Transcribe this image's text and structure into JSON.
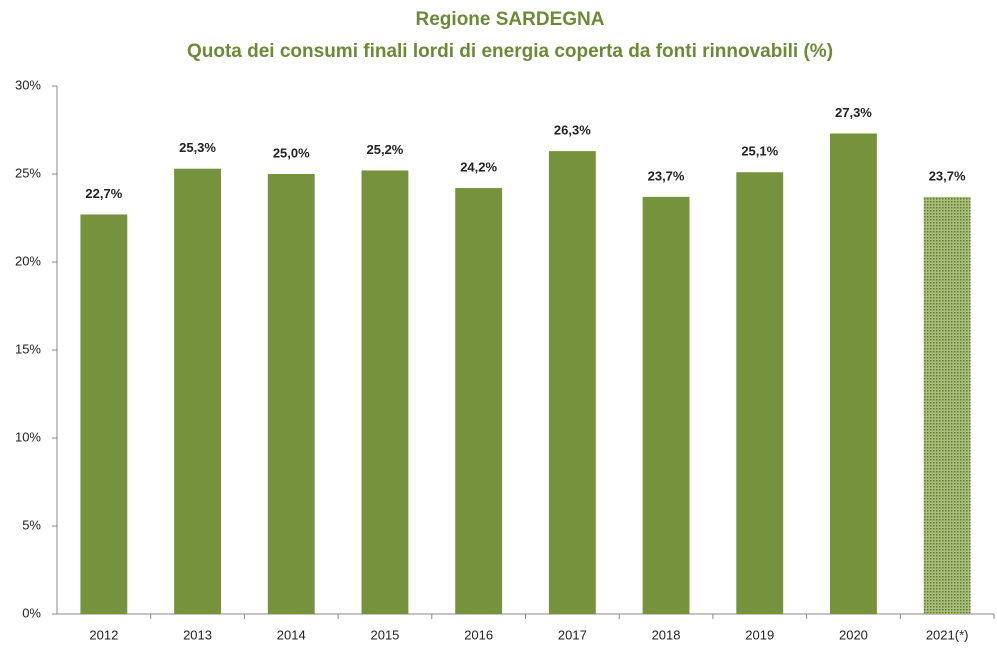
{
  "chart_data": {
    "type": "bar",
    "title": "Regione SARDEGNA",
    "subtitle": "Quota dei consumi finali lordi di energia coperta da fonti rinnovabili (%)",
    "categories": [
      "2012",
      "2013",
      "2014",
      "2015",
      "2016",
      "2017",
      "2018",
      "2019",
      "2020",
      "2021(*)"
    ],
    "values": [
      22.7,
      25.3,
      25.0,
      25.2,
      24.2,
      26.3,
      23.7,
      25.1,
      27.3,
      23.7
    ],
    "value_labels": [
      "22,7%",
      "25,3%",
      "25,0%",
      "25,2%",
      "24,2%",
      "26,3%",
      "23,7%",
      "25,1%",
      "27,3%",
      "23,7%"
    ],
    "color": "#76923c",
    "hatched": [
      9
    ],
    "ylim": [
      0,
      30
    ],
    "yticks": [
      {
        "value": 0,
        "label": "0%"
      },
      {
        "value": 5,
        "label": "5%"
      },
      {
        "value": 10,
        "label": "10%"
      },
      {
        "value": 15,
        "label": "15%"
      },
      {
        "value": 20,
        "label": "20%"
      },
      {
        "value": 25,
        "label": "25%"
      },
      {
        "value": 30,
        "label": "30%"
      }
    ],
    "grid": false
  }
}
